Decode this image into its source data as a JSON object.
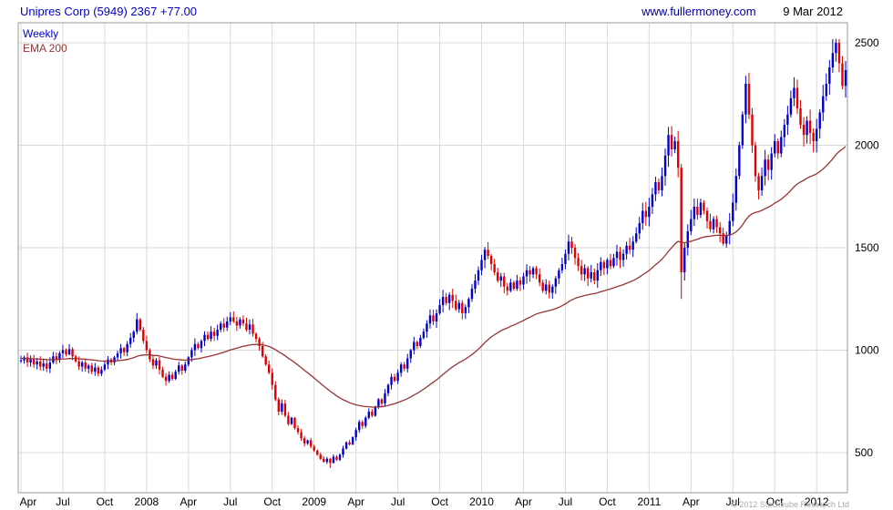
{
  "header": {
    "title": "Unipres Corp (5949) 2367 +77.00",
    "source": "www.fullermoney.com",
    "date": "9 Mar 2012"
  },
  "legend": {
    "series": "Weekly",
    "ema": "EMA 200"
  },
  "footer": {
    "copyright": "© 2012 Stockcube Research Ltd"
  },
  "colors": {
    "up": "#0000cc",
    "down": "#dd0000",
    "ema": "#993333",
    "grid": "#d9d9d9",
    "frame": "#999999",
    "axis_text": "#000000"
  },
  "chart_data": {
    "type": "candlestick",
    "instrument": "Unipres Corp (5949)",
    "interval": "Weekly",
    "last_price": 2367,
    "change": 77.0,
    "title": "Unipres Corp (5949) 2367 +77.00",
    "legend": [
      "Weekly",
      "EMA 200"
    ],
    "y_ticks": [
      500,
      1000,
      1500,
      2000,
      2500
    ],
    "ylim": [
      300,
      2600
    ],
    "x_range": "Apr 2007 - Mar 2012",
    "x_ticks": [
      {
        "label": "Apr",
        "week": 0
      },
      {
        "label": "Jul",
        "week": 13
      },
      {
        "label": "Oct",
        "week": 26
      },
      {
        "label": "2008",
        "week": 39
      },
      {
        "label": "Apr",
        "week": 52
      },
      {
        "label": "Jul",
        "week": 65
      },
      {
        "label": "Oct",
        "week": 78
      },
      {
        "label": "2009",
        "week": 91
      },
      {
        "label": "Apr",
        "week": 104
      },
      {
        "label": "Jul",
        "week": 117
      },
      {
        "label": "Oct",
        "week": 130
      },
      {
        "label": "2010",
        "week": 143
      },
      {
        "label": "Apr",
        "week": 156
      },
      {
        "label": "Jul",
        "week": 169
      },
      {
        "label": "Oct",
        "week": 182
      },
      {
        "label": "2011",
        "week": 195
      },
      {
        "label": "Apr",
        "week": 208
      },
      {
        "label": "Jul",
        "week": 221
      },
      {
        "label": "Oct",
        "week": 234
      },
      {
        "label": "2012",
        "week": 247
      }
    ],
    "first_open": 945,
    "closes": [
      950,
      965,
      940,
      955,
      930,
      945,
      920,
      935,
      910,
      940,
      970,
      955,
      985,
      1000,
      980,
      1005,
      970,
      945,
      920,
      940,
      910,
      925,
      895,
      915,
      885,
      905,
      930,
      955,
      940,
      965,
      985,
      1010,
      990,
      1030,
      1060,
      1090,
      1150,
      1100,
      1045,
      1000,
      955,
      925,
      950,
      905,
      870,
      850,
      880,
      860,
      895,
      925,
      900,
      930,
      965,
      1000,
      1030,
      1010,
      1045,
      1075,
      1055,
      1090,
      1070,
      1100,
      1130,
      1110,
      1140,
      1160,
      1140,
      1120,
      1150,
      1130,
      1100,
      1125,
      1080,
      1055,
      1020,
      970,
      930,
      890,
      830,
      760,
      700,
      740,
      680,
      640,
      670,
      620,
      600,
      570,
      545,
      560,
      530,
      510,
      490,
      470,
      455,
      470,
      450,
      480,
      465,
      490,
      520,
      550,
      540,
      575,
      610,
      650,
      630,
      670,
      700,
      680,
      720,
      760,
      740,
      790,
      830,
      870,
      850,
      890,
      930,
      910,
      960,
      1000,
      1040,
      1020,
      1060,
      1090,
      1130,
      1170,
      1140,
      1180,
      1220,
      1260,
      1230,
      1270,
      1240,
      1200,
      1230,
      1180,
      1210,
      1250,
      1300,
      1340,
      1390,
      1440,
      1490,
      1460,
      1420,
      1380,
      1340,
      1360,
      1310,
      1290,
      1330,
      1300,
      1340,
      1320,
      1360,
      1390,
      1370,
      1400,
      1370,
      1330,
      1290,
      1320,
      1280,
      1310,
      1350,
      1390,
      1420,
      1470,
      1530,
      1500,
      1450,
      1410,
      1370,
      1400,
      1350,
      1380,
      1340,
      1390,
      1430,
      1400,
      1440,
      1410,
      1450,
      1480,
      1440,
      1470,
      1510,
      1490,
      1530,
      1570,
      1620,
      1680,
      1650,
      1700,
      1760,
      1820,
      1780,
      1850,
      1950,
      2050,
      1980,
      2020,
      1890,
      1380,
      1500,
      1580,
      1640,
      1700,
      1660,
      1720,
      1680,
      1630,
      1590,
      1640,
      1600,
      1570,
      1520,
      1560,
      1630,
      1720,
      1850,
      2000,
      2150,
      2300,
      2150,
      2000,
      1850,
      1780,
      1850,
      1930,
      1880,
      1960,
      2020,
      1960,
      2040,
      2100,
      2150,
      2230,
      2280,
      2180,
      2100,
      2050,
      2120,
      2060,
      2020,
      2080,
      2160,
      2240,
      2300,
      2380,
      2450,
      2500,
      2400,
      2290,
      2367
    ],
    "low_overrides": {
      "96": 425,
      "205": 1250
    },
    "ema": {
      "label": "EMA 200",
      "alpha": 0.035,
      "start": 960
    }
  }
}
